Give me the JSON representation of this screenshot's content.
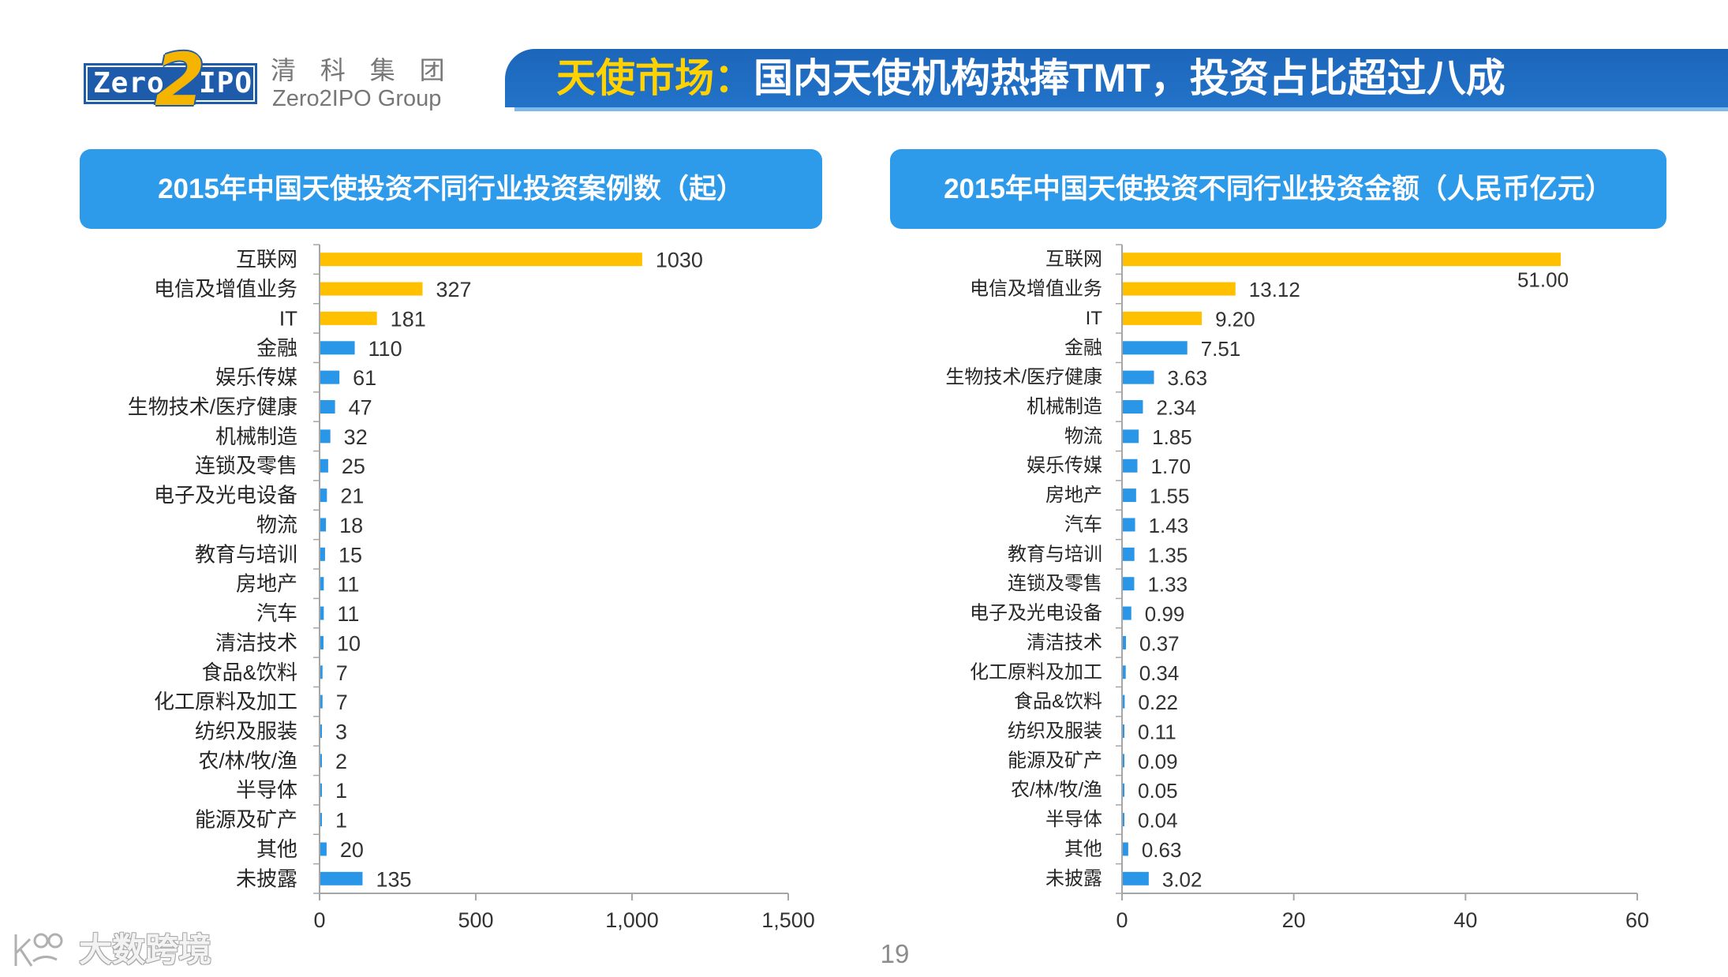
{
  "header": {
    "logo": {
      "zero": "Zero",
      "two": "2",
      "ipo": "IPO"
    },
    "company_cn": "清 科 集 团",
    "company_en": "Zero2IPO Group",
    "title_highlight": "天使市场：",
    "title_rest": "国内天使机构热捧TMT，投资占比超过八成"
  },
  "colors": {
    "banner": "#1F6EC4",
    "panel_header": "#2E9BEA",
    "title_highlight": "#FFD200",
    "bar_highlight": "#FFC000",
    "bar_normal": "#2A96E8",
    "axis": "#A6A6A6",
    "text": "#262626"
  },
  "chart_data": [
    {
      "type": "bar",
      "orientation": "horizontal",
      "title": "2015年中国天使投资不同行业投资案例数（起）",
      "categories": [
        "互联网",
        "电信及增值业务",
        "IT",
        "金融",
        "娱乐传媒",
        "生物技术/医疗健康",
        "机械制造",
        "连锁及零售",
        "电子及光电设备",
        "物流",
        "教育与培训",
        "房地产",
        "汽车",
        "清洁技术",
        "食品&饮料",
        "化工原料及加工",
        "纺织及服装",
        "农/林/牧/渔",
        "半导体",
        "能源及矿产",
        "其他",
        "未披露"
      ],
      "values": [
        1030,
        327,
        181,
        110,
        61,
        47,
        32,
        25,
        21,
        18,
        15,
        11,
        11,
        10,
        7,
        7,
        3,
        2,
        1,
        1,
        20,
        135
      ],
      "data_labels": [
        "1030",
        "327",
        "181",
        "110",
        "61",
        "47",
        "32",
        "25",
        "21",
        "18",
        "15",
        "11",
        "11",
        "10",
        "7",
        "7",
        "3",
        "2",
        "1",
        "1",
        "20",
        "135"
      ],
      "xlim": [
        0,
        1500
      ],
      "xticks": [
        0,
        500,
        1000,
        1500
      ],
      "xtick_labels": [
        "0",
        "500",
        "1,000",
        "1,500"
      ],
      "highlight_count": 3
    },
    {
      "type": "bar",
      "orientation": "horizontal",
      "title": "2015年中国天使投资不同行业投资金额（人民币亿元）",
      "categories": [
        "互联网",
        "电信及增值业务",
        "IT",
        "金融",
        "生物技术/医疗健康",
        "机械制造",
        "物流",
        "娱乐传媒",
        "房地产",
        "汽车",
        "教育与培训",
        "连锁及零售",
        "电子及光电设备",
        "清洁技术",
        "化工原料及加工",
        "食品&饮料",
        "纺织及服装",
        "能源及矿产",
        "农/林/牧/渔",
        "半导体",
        "其他",
        "未披露"
      ],
      "values": [
        51.0,
        13.12,
        9.2,
        7.51,
        3.63,
        2.34,
        1.85,
        1.7,
        1.55,
        1.43,
        1.35,
        1.33,
        0.99,
        0.37,
        0.34,
        0.22,
        0.11,
        0.09,
        0.05,
        0.04,
        0.63,
        3.02
      ],
      "data_labels": [
        "51.00",
        "13.12",
        "9.20",
        "7.51",
        "3.63",
        "2.34",
        "1.85",
        "1.70",
        "1.55",
        "1.43",
        "1.35",
        "1.33",
        "0.99",
        "0.37",
        "0.34",
        "0.22",
        "0.11",
        "0.09",
        "0.05",
        "0.04",
        "0.63",
        "3.02"
      ],
      "xlim": [
        0,
        60
      ],
      "xticks": [
        0,
        20,
        40,
        60
      ],
      "xtick_labels": [
        "0",
        "20",
        "40",
        "60"
      ],
      "highlight_count": 3
    }
  ],
  "footer": {
    "page_number": "19",
    "watermark": "大数跨境"
  }
}
